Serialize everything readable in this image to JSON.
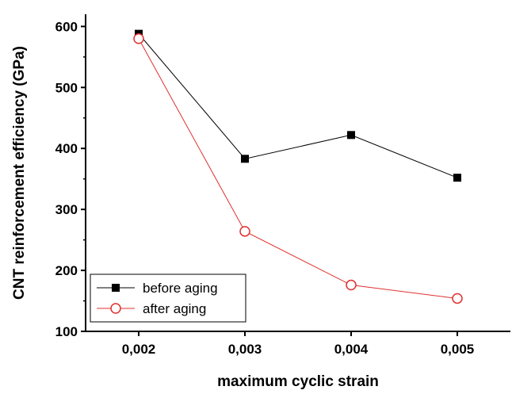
{
  "chart_data": {
    "type": "line",
    "xlabel": "maximum cyclic strain",
    "ylabel": "CNT reinforcement efficiency (GPa)",
    "x": [
      0.002,
      0.003,
      0.004,
      0.005
    ],
    "x_tick_labels": [
      "0,002",
      "0,003",
      "0,004",
      "0,005"
    ],
    "xlim": [
      0.0015,
      0.0055
    ],
    "ylim": [
      100,
      620
    ],
    "y_ticks": [
      100,
      200,
      300,
      400,
      500,
      600
    ],
    "grid": false,
    "legend_position": "bottom-left",
    "series": [
      {
        "name": "before aging",
        "values": [
          588,
          383,
          422,
          352
        ],
        "color": "#000000",
        "marker": "filled-square"
      },
      {
        "name": "after aging",
        "values": [
          580,
          264,
          176,
          154
        ],
        "color": "#e03030",
        "marker": "open-circle"
      }
    ]
  }
}
